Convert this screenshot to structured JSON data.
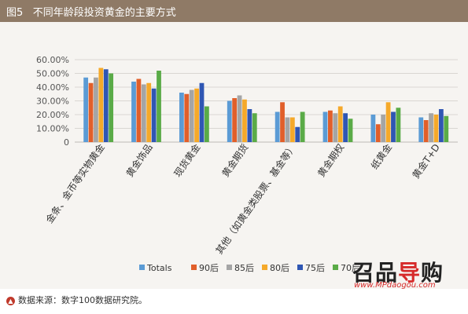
{
  "header": {
    "figure_label": "图5",
    "title": "不同年龄段投资黄金的主要方式"
  },
  "chart_data": {
    "type": "bar",
    "title": "不同年龄段投资黄金的主要方式",
    "ylim": [
      0,
      0.6
    ],
    "y_ticks": [
      "0",
      "10.00%",
      "20.00%",
      "30.00%",
      "40.00%",
      "50.00%",
      "60.00%"
    ],
    "y_tick_values": [
      0,
      0.1,
      0.2,
      0.3,
      0.4,
      0.5,
      0.6
    ],
    "grid": true,
    "legend_position": "bottom",
    "categories": [
      "金条、金币等实物黄金",
      "黄金饰品",
      "现货黄金",
      "黄金期货",
      "其他（如黄金类股票、基金等）",
      "黄金期权",
      "纸黄金",
      "黄金T+D"
    ],
    "series": [
      {
        "name": "Totals",
        "color": "#5b9bd5",
        "values": [
          0.47,
          0.44,
          0.36,
          0.3,
          0.22,
          0.22,
          0.2,
          0.18
        ]
      },
      {
        "name": "90后",
        "color": "#e15f2a",
        "values": [
          0.43,
          0.46,
          0.35,
          0.32,
          0.29,
          0.23,
          0.13,
          0.16
        ]
      },
      {
        "name": "85后",
        "color": "#a5a5a5",
        "values": [
          0.47,
          0.42,
          0.38,
          0.34,
          0.18,
          0.21,
          0.2,
          0.21
        ]
      },
      {
        "name": "80后",
        "color": "#f5a92a",
        "values": [
          0.54,
          0.43,
          0.39,
          0.31,
          0.18,
          0.26,
          0.29,
          0.2
        ]
      },
      {
        "name": "75后",
        "color": "#2f56b3",
        "values": [
          0.53,
          0.39,
          0.43,
          0.24,
          0.11,
          0.21,
          0.22,
          0.24
        ]
      },
      {
        "name": "70后",
        "color": "#5aab47",
        "values": [
          0.5,
          0.52,
          0.26,
          0.21,
          0.22,
          0.17,
          0.25,
          0.19
        ]
      }
    ]
  },
  "source": {
    "text": "数据来源：数字100数据研究院。"
  },
  "watermark": {
    "logo_main": "召品",
    "logo_accent": "导",
    "logo_end": "购",
    "url": "www.MPdaogou.com"
  }
}
